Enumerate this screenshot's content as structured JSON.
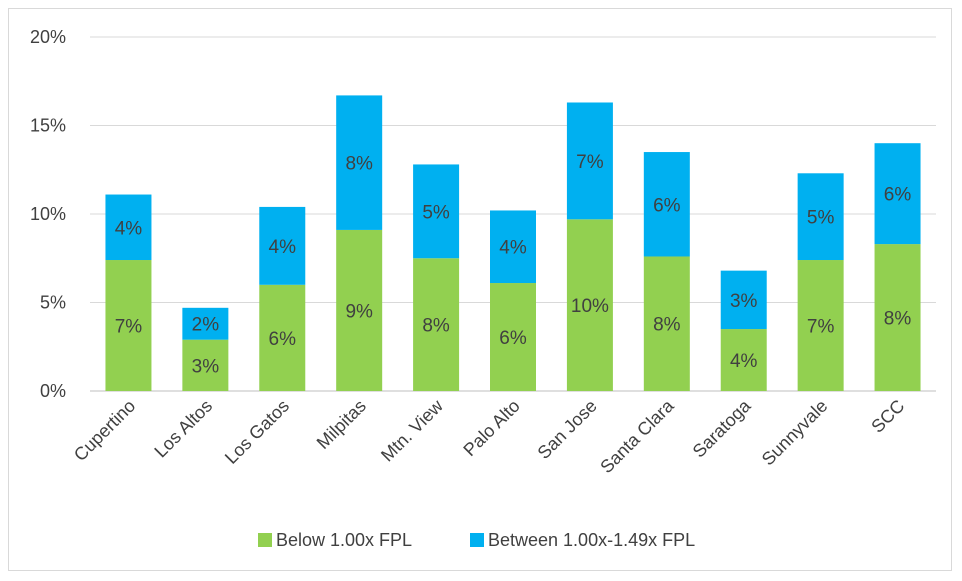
{
  "chart_data": {
    "type": "bar",
    "stacked": true,
    "categories": [
      "Cupertino",
      "Los Altos",
      "Los Gatos",
      "Milpitas",
      "Mtn. View",
      "Palo Alto",
      "San Jose",
      "Santa Clara",
      "Saratoga",
      "Sunnyvale",
      "SCC"
    ],
    "series": [
      {
        "name": "Below 1.00x FPL",
        "color": "#92d050",
        "values": [
          7.4,
          2.9,
          6.0,
          9.1,
          7.5,
          6.1,
          9.7,
          7.6,
          3.5,
          7.4,
          8.3
        ],
        "labels": [
          "7%",
          "3%",
          "6%",
          "9%",
          "8%",
          "6%",
          "10%",
          "8%",
          "4%",
          "7%",
          "8%"
        ]
      },
      {
        "name": "Between 1.00x-1.49x FPL",
        "color": "#00b0f0",
        "values": [
          3.7,
          1.8,
          4.4,
          7.6,
          5.3,
          4.1,
          6.6,
          5.9,
          3.3,
          4.9,
          5.7
        ],
        "labels": [
          "4%",
          "2%",
          "4%",
          "8%",
          "5%",
          "4%",
          "7%",
          "6%",
          "3%",
          "5%",
          "6%"
        ]
      }
    ],
    "ylim": [
      0,
      20
    ],
    "yticks": [
      0,
      5,
      10,
      15,
      20
    ],
    "ytick_labels": [
      "0%",
      "5%",
      "10%",
      "15%",
      "20%"
    ],
    "grid": true,
    "legend_position": "bottom",
    "title": "",
    "xlabel": "",
    "ylabel": ""
  }
}
